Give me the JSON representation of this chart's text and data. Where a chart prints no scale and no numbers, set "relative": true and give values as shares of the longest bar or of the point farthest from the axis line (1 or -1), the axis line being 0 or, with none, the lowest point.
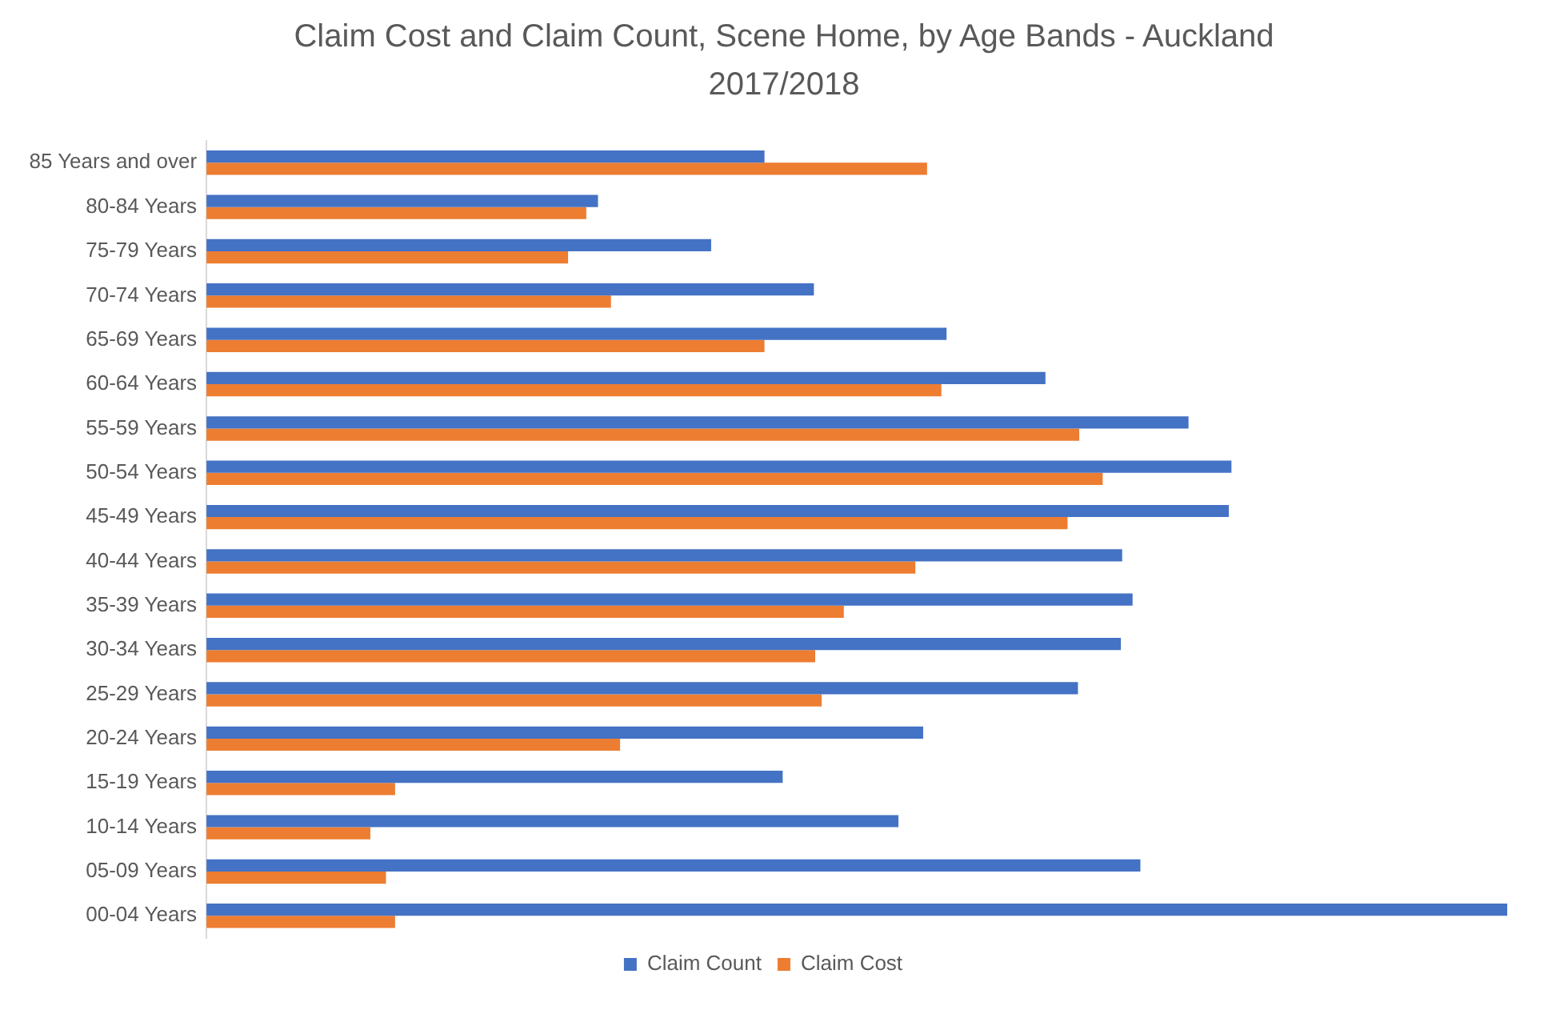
{
  "chart_data": {
    "type": "bar",
    "orientation": "horizontal",
    "relative": true,
    "title": "Claim Cost and Claim Count, Scene Home, by Age Bands - Auckland 2017/2018",
    "categories": [
      "85 Years and over",
      "80-84 Years",
      "75-79 Years",
      "70-74 Years",
      "65-69 Years",
      "60-64 Years",
      "55-59 Years",
      "50-54 Years",
      "45-49 Years",
      "40-44 Years",
      "35-39 Years",
      "30-34 Years",
      "25-29 Years",
      "20-24 Years",
      "15-19 Years",
      "10-14 Years",
      "05-09 Years",
      "00-04 Years"
    ],
    "series": [
      {
        "name": "Claim Count",
        "color": "#4472c4",
        "values": [
          0.429,
          0.301,
          0.388,
          0.467,
          0.569,
          0.645,
          0.755,
          0.788,
          0.786,
          0.704,
          0.712,
          0.703,
          0.67,
          0.551,
          0.443,
          0.532,
          0.718,
          1
        ]
      },
      {
        "name": "Claim Cost",
        "color": "#ed7d31",
        "values": [
          0.554,
          0.292,
          0.278,
          0.311,
          0.429,
          0.565,
          0.671,
          0.689,
          0.662,
          0.545,
          0.49,
          0.468,
          0.473,
          0.318,
          0.145,
          0.126,
          0.138,
          0.145
        ]
      }
    ],
    "legend": "bottom"
  }
}
